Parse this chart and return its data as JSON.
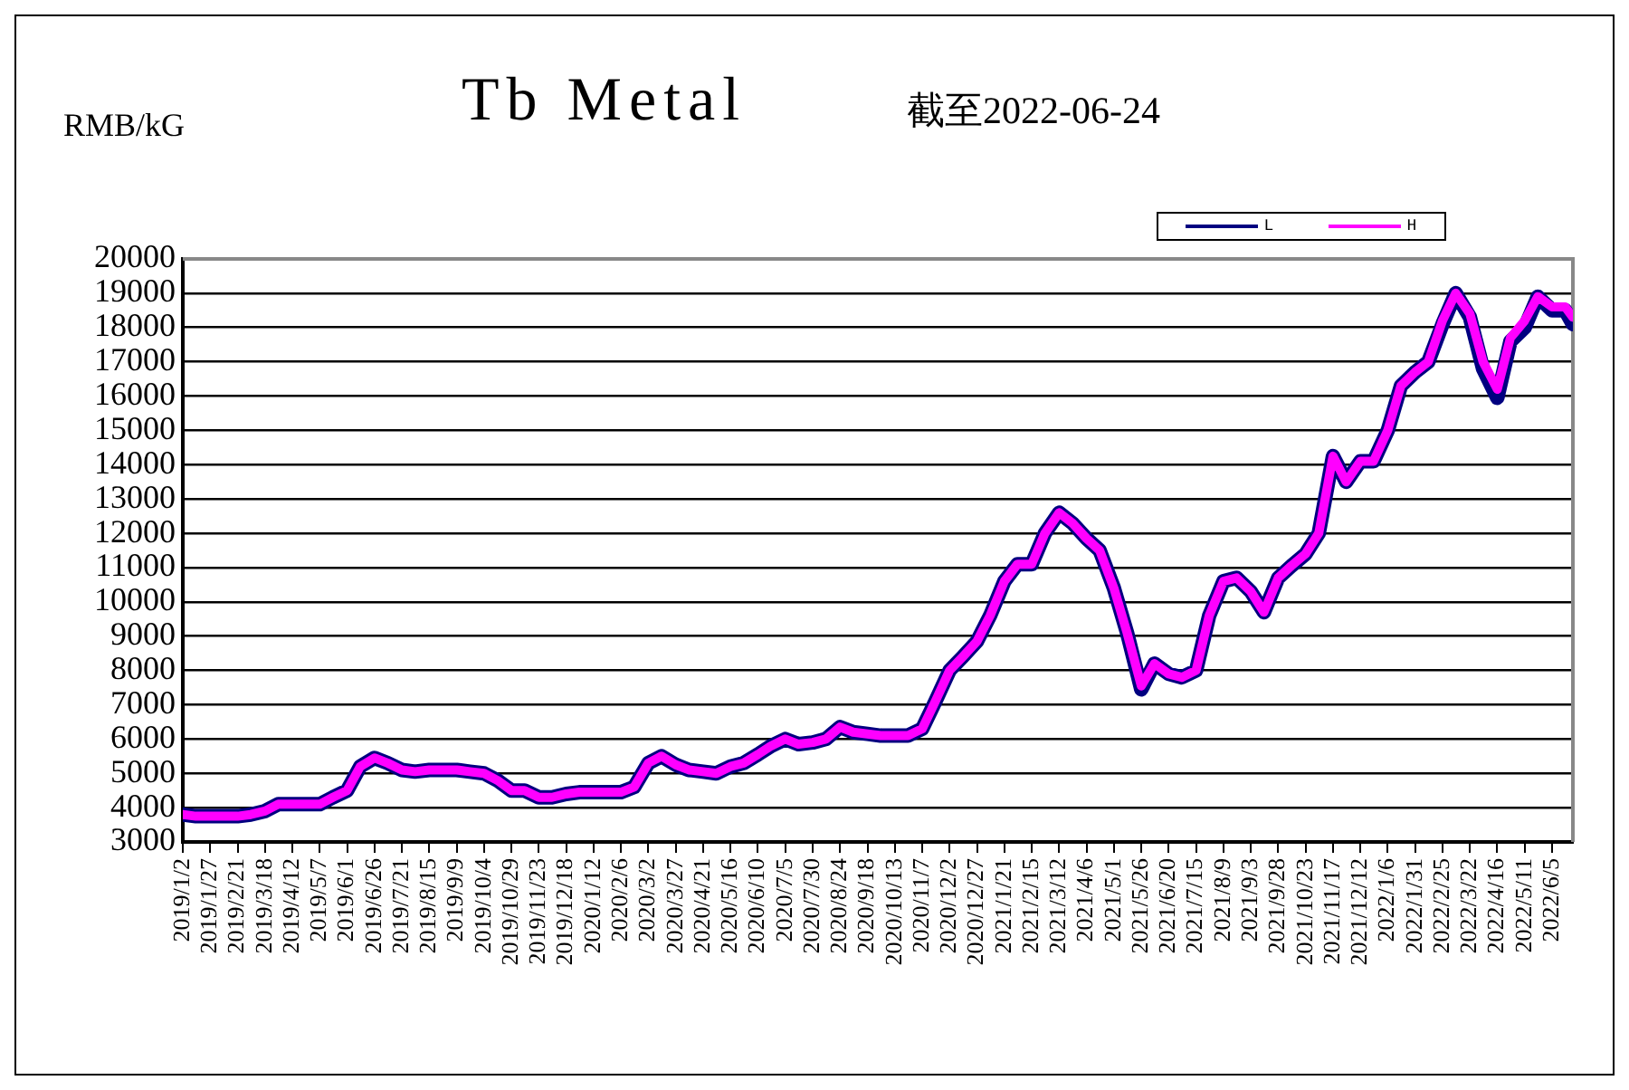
{
  "chart_data": {
    "type": "line",
    "title": "Tb Metal",
    "subtitle": "截至2022-06-24",
    "ylabel": "RMB/kG",
    "x": [
      "2019-01-02",
      "2019-01-14",
      "2019-01-27",
      "2019-02-08",
      "2019-02-21",
      "2019-03-05",
      "2019-03-18",
      "2019-03-30",
      "2019-04-12",
      "2019-04-24",
      "2019-05-07",
      "2019-05-19",
      "2019-06-01",
      "2019-06-13",
      "2019-06-26",
      "2019-07-08",
      "2019-07-21",
      "2019-08-02",
      "2019-08-15",
      "2019-08-27",
      "2019-09-09",
      "2019-09-21",
      "2019-10-04",
      "2019-10-16",
      "2019-10-29",
      "2019-11-10",
      "2019-11-23",
      "2019-12-05",
      "2019-12-18",
      "2019-12-30",
      "2020-01-12",
      "2020-01-24",
      "2020-02-06",
      "2020-02-18",
      "2020-03-02",
      "2020-03-14",
      "2020-03-27",
      "2020-04-08",
      "2020-04-21",
      "2020-05-03",
      "2020-05-16",
      "2020-05-28",
      "2020-06-10",
      "2020-06-22",
      "2020-07-05",
      "2020-07-17",
      "2020-07-30",
      "2020-08-11",
      "2020-08-24",
      "2020-09-05",
      "2020-09-18",
      "2020-09-30",
      "2020-10-13",
      "2020-10-25",
      "2020-11-07",
      "2020-11-19",
      "2020-12-02",
      "2020-12-14",
      "2020-12-27",
      "2021-01-08",
      "2021-01-21",
      "2021-02-02",
      "2021-02-15",
      "2021-02-27",
      "2021-03-12",
      "2021-03-24",
      "2021-04-06",
      "2021-04-18",
      "2021-05-01",
      "2021-05-13",
      "2021-05-26",
      "2021-06-07",
      "2021-06-20",
      "2021-07-02",
      "2021-07-15",
      "2021-07-27",
      "2021-08-09",
      "2021-08-21",
      "2021-09-03",
      "2021-09-15",
      "2021-09-28",
      "2021-10-10",
      "2021-10-23",
      "2021-11-04",
      "2021-11-17",
      "2021-11-29",
      "2021-12-12",
      "2021-12-24",
      "2022-01-06",
      "2022-01-18",
      "2022-01-31",
      "2022-02-12",
      "2022-02-25",
      "2022-03-09",
      "2022-03-22",
      "2022-04-03",
      "2022-04-16",
      "2022-04-28",
      "2022-05-11",
      "2022-05-23",
      "2022-06-05",
      "2022-06-17",
      "2022-06-24"
    ],
    "series": [
      {
        "name": "L",
        "color": "#000080",
        "values": [
          3800,
          3750,
          3750,
          3750,
          3750,
          3800,
          3900,
          4100,
          4100,
          4100,
          4100,
          4300,
          4500,
          5200,
          5450,
          5300,
          5100,
          5050,
          5100,
          5100,
          5100,
          5050,
          5000,
          4800,
          4500,
          4500,
          4300,
          4300,
          4400,
          4450,
          4450,
          4450,
          4450,
          4600,
          5300,
          5500,
          5250,
          5100,
          5050,
          5000,
          5200,
          5300,
          5550,
          5800,
          6000,
          5850,
          5900,
          6000,
          6350,
          6200,
          6150,
          6100,
          6100,
          6100,
          6300,
          7100,
          8000,
          8400,
          8850,
          9600,
          10600,
          11100,
          11100,
          12000,
          12600,
          12300,
          11850,
          11500,
          10400,
          9100,
          7450,
          8200,
          7900,
          7800,
          8000,
          9600,
          10600,
          10700,
          10300,
          9700,
          10700,
          11050,
          11400,
          12000,
          14250,
          13500,
          14100,
          14100,
          15000,
          16300,
          16700,
          17000,
          18100,
          19000,
          18300,
          16800,
          15950,
          17600,
          18000,
          18900,
          18500,
          18500,
          18100
        ]
      },
      {
        "name": "H",
        "color": "#ff00ff",
        "values": [
          3800,
          3750,
          3750,
          3750,
          3750,
          3800,
          3900,
          4100,
          4100,
          4100,
          4100,
          4300,
          4500,
          5200,
          5450,
          5300,
          5100,
          5050,
          5100,
          5100,
          5100,
          5050,
          5000,
          4800,
          4500,
          4500,
          4300,
          4300,
          4400,
          4450,
          4450,
          4450,
          4450,
          4600,
          5300,
          5500,
          5250,
          5100,
          5050,
          5000,
          5200,
          5300,
          5550,
          5800,
          6000,
          5850,
          5900,
          6000,
          6350,
          6200,
          6150,
          6100,
          6100,
          6100,
          6300,
          7100,
          8000,
          8400,
          8850,
          9600,
          10600,
          11100,
          11100,
          12000,
          12600,
          12300,
          11850,
          11500,
          10400,
          9100,
          7550,
          8200,
          7900,
          7800,
          8000,
          9600,
          10600,
          10700,
          10300,
          9700,
          10700,
          11050,
          11400,
          12000,
          14250,
          13500,
          14100,
          14100,
          15000,
          16300,
          16700,
          17000,
          18200,
          19000,
          18400,
          17000,
          16200,
          17700,
          18200,
          18900,
          18600,
          18600,
          18300
        ]
      }
    ],
    "xlim": [
      "2019-01-02",
      "2022-06-24"
    ],
    "xticks": [
      {
        "value": "2019-01-02",
        "label": "2019/1/2"
      },
      {
        "value": "2019-01-27",
        "label": "2019/1/27"
      },
      {
        "value": "2019-02-21",
        "label": "2019/2/21"
      },
      {
        "value": "2019-03-18",
        "label": "2019/3/18"
      },
      {
        "value": "2019-04-12",
        "label": "2019/4/12"
      },
      {
        "value": "2019-05-07",
        "label": "2019/5/7"
      },
      {
        "value": "2019-06-01",
        "label": "2019/6/1"
      },
      {
        "value": "2019-06-26",
        "label": "2019/6/26"
      },
      {
        "value": "2019-07-21",
        "label": "2019/7/21"
      },
      {
        "value": "2019-08-15",
        "label": "2019/8/15"
      },
      {
        "value": "2019-09-09",
        "label": "2019/9/9"
      },
      {
        "value": "2019-10-04",
        "label": "2019/10/4"
      },
      {
        "value": "2019-10-29",
        "label": "2019/10/29"
      },
      {
        "value": "2019-11-23",
        "label": "2019/11/23"
      },
      {
        "value": "2019-12-18",
        "label": "2019/12/18"
      },
      {
        "value": "2020-01-12",
        "label": "2020/1/12"
      },
      {
        "value": "2020-02-06",
        "label": "2020/2/6"
      },
      {
        "value": "2020-03-02",
        "label": "2020/3/2"
      },
      {
        "value": "2020-03-27",
        "label": "2020/3/27"
      },
      {
        "value": "2020-04-21",
        "label": "2020/4/21"
      },
      {
        "value": "2020-05-16",
        "label": "2020/5/16"
      },
      {
        "value": "2020-06-10",
        "label": "2020/6/10"
      },
      {
        "value": "2020-07-05",
        "label": "2020/7/5"
      },
      {
        "value": "2020-07-30",
        "label": "2020/7/30"
      },
      {
        "value": "2020-08-24",
        "label": "2020/8/24"
      },
      {
        "value": "2020-09-18",
        "label": "2020/9/18"
      },
      {
        "value": "2020-10-13",
        "label": "2020/10/13"
      },
      {
        "value": "2020-11-07",
        "label": "2020/11/7"
      },
      {
        "value": "2020-12-02",
        "label": "2020/12/2"
      },
      {
        "value": "2020-12-27",
        "label": "2020/12/27"
      },
      {
        "value": "2021-01-21",
        "label": "2021/1/21"
      },
      {
        "value": "2021-02-15",
        "label": "2021/2/15"
      },
      {
        "value": "2021-03-12",
        "label": "2021/3/12"
      },
      {
        "value": "2021-04-06",
        "label": "2021/4/6"
      },
      {
        "value": "2021-05-01",
        "label": "2021/5/1"
      },
      {
        "value": "2021-05-26",
        "label": "2021/5/26"
      },
      {
        "value": "2021-06-20",
        "label": "2021/6/20"
      },
      {
        "value": "2021-07-15",
        "label": "2021/7/15"
      },
      {
        "value": "2021-08-09",
        "label": "2021/8/9"
      },
      {
        "value": "2021-09-03",
        "label": "2021/9/3"
      },
      {
        "value": "2021-09-28",
        "label": "2021/9/28"
      },
      {
        "value": "2021-10-23",
        "label": "2021/10/23"
      },
      {
        "value": "2021-11-17",
        "label": "2021/11/17"
      },
      {
        "value": "2021-12-12",
        "label": "2021/12/12"
      },
      {
        "value": "2022-01-06",
        "label": "2022/1/6"
      },
      {
        "value": "2022-01-31",
        "label": "2022/1/31"
      },
      {
        "value": "2022-02-25",
        "label": "2022/2/25"
      },
      {
        "value": "2022-03-22",
        "label": "2022/3/22"
      },
      {
        "value": "2022-04-16",
        "label": "2022/4/16"
      },
      {
        "value": "2022-05-11",
        "label": "2022/5/11"
      },
      {
        "value": "2022-06-05",
        "label": "2022/6/5"
      }
    ],
    "ylim": [
      3000,
      20000
    ],
    "yticks": [
      3000,
      4000,
      5000,
      6000,
      7000,
      8000,
      9000,
      10000,
      11000,
      12000,
      13000,
      14000,
      15000,
      16000,
      17000,
      18000,
      19000,
      20000
    ],
    "grid": "y",
    "legend": "top right",
    "marker": "none"
  }
}
